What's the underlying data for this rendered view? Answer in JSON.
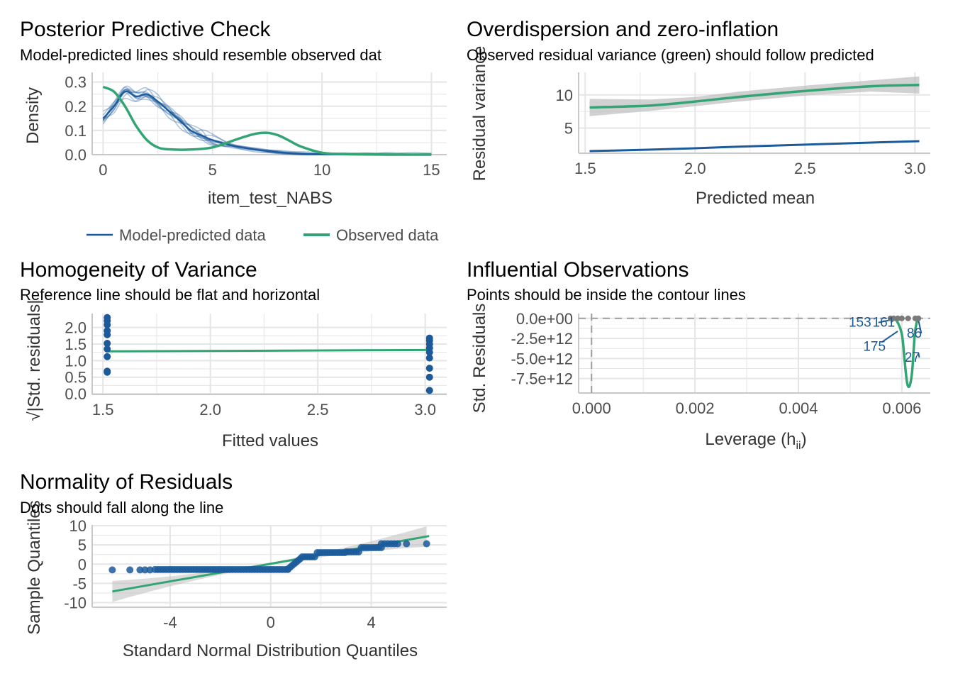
{
  "colors": {
    "predicted": "#1B5A9B",
    "observed": "#33A474",
    "grid": "#E5E5E5",
    "axis": "#C8C8C8",
    "ribbon": "#BEBEBE",
    "reference": "#9E9E9E"
  },
  "chart_data": [
    {
      "id": "ppc",
      "type": "line",
      "title": "Posterior Predictive Check",
      "subtitle": "Model-predicted lines should resemble observed dat",
      "xlabel": "item_test_NABS",
      "ylabel": "Density",
      "xlim": [
        -0.5,
        15.7
      ],
      "ylim": [
        0,
        0.34
      ],
      "xticks": [
        0,
        5,
        10,
        15
      ],
      "yticks": [
        0.0,
        0.1,
        0.2,
        0.3
      ],
      "ytick_labels": [
        "0.0",
        "0.1",
        "0.2",
        "0.3"
      ],
      "legend_position": "bottom",
      "series": [
        {
          "name": "Model-predicted data",
          "x": [
            0,
            0.5,
            1,
            1.5,
            2,
            2.5,
            3,
            3.5,
            4,
            4.5,
            5,
            6,
            7,
            8,
            9,
            10,
            11,
            12,
            13,
            14,
            15
          ],
          "y": [
            0.15,
            0.2,
            0.26,
            0.24,
            0.25,
            0.22,
            0.18,
            0.14,
            0.1,
            0.08,
            0.06,
            0.035,
            0.02,
            0.01,
            0.004,
            0.002,
            0.001,
            0.0005,
            0.0002,
            0.0001,
            0.0
          ]
        },
        {
          "name": "Observed data",
          "x": [
            0,
            0.5,
            1,
            1.5,
            2,
            2.5,
            3,
            4,
            5,
            6,
            6.5,
            7,
            7.5,
            8,
            8.5,
            9,
            10,
            11,
            12,
            13,
            14,
            15
          ],
          "y": [
            0.28,
            0.26,
            0.2,
            0.12,
            0.06,
            0.03,
            0.022,
            0.021,
            0.03,
            0.06,
            0.075,
            0.087,
            0.09,
            0.08,
            0.058,
            0.035,
            0.008,
            0.002,
            0.001,
            0.0,
            0.0,
            0.0
          ]
        }
      ]
    },
    {
      "id": "overdispersion",
      "type": "line",
      "title": "Overdispersion and zero-inflation",
      "subtitle": "Observed residual variance (green) should follow predicted",
      "xlabel": "Predicted mean",
      "ylabel": "Residual variance",
      "xlim": [
        1.47,
        3.07
      ],
      "ylim": [
        1.2,
        13.4
      ],
      "xticks": [
        1.5,
        2.0,
        2.5,
        3.0
      ],
      "xtick_labels": [
        "1.5",
        "2.0",
        "2.5",
        "3.0"
      ],
      "yticks": [
        5,
        10
      ],
      "series": [
        {
          "name": "Observed residual variance",
          "x": [
            1.52,
            1.8,
            2.0,
            2.2,
            2.5,
            2.8,
            3.02
          ],
          "y": [
            8.1,
            8.4,
            9.0,
            9.7,
            10.6,
            11.3,
            11.5
          ],
          "band_low": [
            6.8,
            7.6,
            8.3,
            9.0,
            9.9,
            10.5,
            10.2
          ],
          "band_high": [
            9.4,
            9.3,
            9.7,
            10.5,
            11.4,
            12.2,
            12.8
          ]
        },
        {
          "name": "Predicted residual variance",
          "x": [
            1.52,
            1.8,
            2.0,
            2.2,
            2.5,
            2.8,
            3.02
          ],
          "y": [
            1.52,
            1.75,
            1.95,
            2.2,
            2.5,
            2.8,
            3.02
          ]
        }
      ]
    },
    {
      "id": "homogeneity",
      "type": "scatter",
      "title": "Homogeneity of Variance",
      "subtitle": "Reference line should be flat and horizontal",
      "xlabel": "Fitted values",
      "ylabel": "√|Std. residuals|",
      "xlim": [
        1.45,
        3.1
      ],
      "ylim": [
        -0.02,
        2.42
      ],
      "xticks": [
        1.5,
        2.0,
        2.5,
        3.0
      ],
      "xtick_labels": [
        "1.5",
        "2.0",
        "2.5",
        "3.0"
      ],
      "yticks": [
        0.0,
        0.5,
        1.0,
        1.5,
        2.0
      ],
      "ytick_labels": [
        "0.0",
        "0.5",
        "1.0",
        "1.5",
        "2.0"
      ],
      "points": [
        [
          1.52,
          2.3
        ],
        [
          1.52,
          2.2
        ],
        [
          1.52,
          2.08
        ],
        [
          1.52,
          1.9
        ],
        [
          1.52,
          1.78
        ],
        [
          1.52,
          1.52
        ],
        [
          1.52,
          1.35
        ],
        [
          1.52,
          1.12
        ],
        [
          1.52,
          0.68
        ],
        [
          1.52,
          0.65
        ],
        [
          3.02,
          1.68
        ],
        [
          3.02,
          1.6
        ],
        [
          3.02,
          1.5
        ],
        [
          3.02,
          1.38
        ],
        [
          3.02,
          1.25
        ],
        [
          3.02,
          1.08
        ],
        [
          3.02,
          0.77
        ],
        [
          3.02,
          0.5
        ],
        [
          3.02,
          0.1
        ]
      ],
      "smooth": {
        "x": [
          1.52,
          3.02
        ],
        "y": [
          1.28,
          1.32
        ]
      }
    },
    {
      "id": "influential",
      "type": "scatter",
      "title": "Influential Observations",
      "subtitle": "Points should be inside the contour lines",
      "xlabel": "Leverage (h",
      "xlabel_sub": "ii",
      "xlabel_end": ")",
      "ylabel": "Std. Residuals",
      "xlim": [
        -0.00025,
        0.00655
      ],
      "ylim": [
        -9300000000000.0,
        600000000000.0
      ],
      "xticks": [
        0.0,
        0.002,
        0.004,
        0.006
      ],
      "xtick_labels": [
        "0.000",
        "0.002",
        "0.004",
        "0.006"
      ],
      "yticks": [
        0,
        -2500000000000.0,
        -5000000000000.0,
        -7500000000000.0
      ],
      "ytick_labels": [
        "0.0e+00",
        "-2.5e+12",
        "-5.0e+12",
        "-7.5e+12"
      ],
      "points": [
        [
          0.00578,
          0.0
        ],
        [
          0.00584,
          0.0
        ],
        [
          0.00592,
          0.0
        ],
        [
          0.006,
          0.0
        ],
        [
          0.00612,
          0.0
        ],
        [
          0.00626,
          0.0
        ],
        [
          0.00632,
          0.0
        ]
      ],
      "smooth": {
        "x": [
          0.0058,
          0.0059,
          0.006,
          0.00605,
          0.0061,
          0.00615,
          0.0062,
          0.00625,
          0.0063
        ],
        "y": [
          0.0,
          -300000000000.0,
          -2000000000000.0,
          -5000000000000.0,
          -8000000000000.0,
          -8400000000000.0,
          -6500000000000.0,
          -2000000000000.0,
          0.0
        ]
      },
      "labels": [
        {
          "text": "153",
          "x": 0.00519,
          "y": -1050000000000.0,
          "tx": 0.00578,
          "ty": -200000000000.0
        },
        {
          "text": "161",
          "x": 0.00565,
          "y": -1050000000000.0,
          "tx": 0.00584,
          "ty": -200000000000.0
        },
        {
          "text": "175",
          "x": 0.00547,
          "y": -4050000000000.0,
          "tx": 0.00592,
          "ty": -1600000000000.0
        },
        {
          "text": "86",
          "x": 0.00624,
          "y": -2400000000000.0,
          "tx": 0.00632,
          "ty": -250000000000.0
        },
        {
          "text": "27",
          "x": 0.0062,
          "y": -5400000000000.0,
          "tx": 0.00632,
          "ty": -4300000000000.0
        }
      ]
    },
    {
      "id": "normality",
      "type": "scatter",
      "title": "Normality of Residuals",
      "subtitle": "Dots should fall along the line",
      "xlabel": "Standard Normal Distribution Quantiles",
      "ylabel": "Sample Quantiles",
      "xlim": [
        -7.1,
        7.0
      ],
      "ylim": [
        -11.2,
        10.2
      ],
      "xticks": [
        -4,
        0,
        4
      ],
      "yticks": [
        10,
        5,
        0,
        -5,
        -10
      ],
      "reference_line": {
        "x": [
          -6.3,
          6.3
        ],
        "y": [
          -7.1,
          7.3
        ]
      }
    }
  ],
  "legend": {
    "predicted_label": "Model-predicted data",
    "observed_label": "Observed data"
  }
}
